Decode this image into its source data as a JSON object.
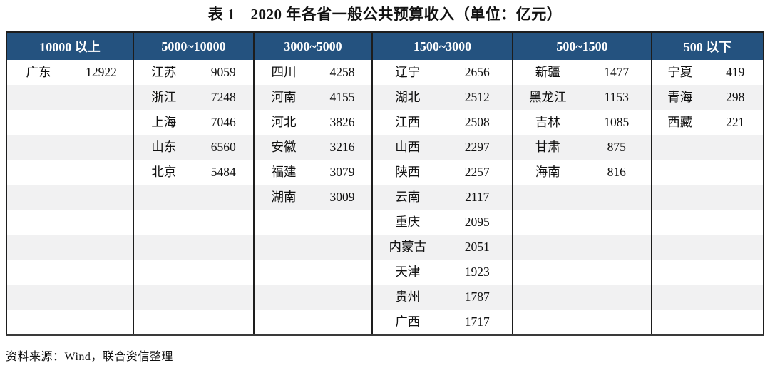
{
  "title": "表 1　2020 年各省一般公共预算收入（单位：亿元）",
  "source_note": "资料来源：Wind，联合资信整理",
  "unit": "亿元",
  "colors": {
    "header_bg": "#24527F",
    "header_text": "#FFFFFF",
    "stripe": "#F1F1F2",
    "border": "#1D1D1D",
    "body_text": "#111111"
  },
  "chart_data": {
    "type": "table",
    "title": "表 1　2020 年各省一般公共预算收入（单位：亿元）",
    "row_count": 11,
    "columns": [
      {
        "header": "10000 以上",
        "rows": [
          {
            "province": "广东",
            "value": "12922"
          }
        ]
      },
      {
        "header": "5000~10000",
        "rows": [
          {
            "province": "江苏",
            "value": "9059"
          },
          {
            "province": "浙江",
            "value": "7248"
          },
          {
            "province": "上海",
            "value": "7046"
          },
          {
            "province": "山东",
            "value": "6560"
          },
          {
            "province": "北京",
            "value": "5484"
          }
        ]
      },
      {
        "header": "3000~5000",
        "rows": [
          {
            "province": "四川",
            "value": "4258"
          },
          {
            "province": "河南",
            "value": "4155"
          },
          {
            "province": "河北",
            "value": "3826"
          },
          {
            "province": "安徽",
            "value": "3216"
          },
          {
            "province": "福建",
            "value": "3079"
          },
          {
            "province": "湖南",
            "value": "3009"
          }
        ]
      },
      {
        "header": "1500~3000",
        "rows": [
          {
            "province": "辽宁",
            "value": "2656"
          },
          {
            "province": "湖北",
            "value": "2512"
          },
          {
            "province": "江西",
            "value": "2508"
          },
          {
            "province": "山西",
            "value": "2297"
          },
          {
            "province": "陕西",
            "value": "2257"
          },
          {
            "province": "云南",
            "value": "2117"
          },
          {
            "province": "重庆",
            "value": "2095"
          },
          {
            "province": "内蒙古",
            "value": "2051"
          },
          {
            "province": "天津",
            "value": "1923"
          },
          {
            "province": "贵州",
            "value": "1787"
          },
          {
            "province": "广西",
            "value": "1717"
          }
        ]
      },
      {
        "header": "500~1500",
        "rows": [
          {
            "province": "新疆",
            "value": "1477"
          },
          {
            "province": "黑龙江",
            "value": "1153"
          },
          {
            "province": "吉林",
            "value": "1085"
          },
          {
            "province": "甘肃",
            "value": "875"
          },
          {
            "province": "海南",
            "value": "816"
          }
        ]
      },
      {
        "header": "500 以下",
        "rows": [
          {
            "province": "宁夏",
            "value": "419"
          },
          {
            "province": "青海",
            "value": "298"
          },
          {
            "province": "西藏",
            "value": "221"
          }
        ]
      }
    ]
  }
}
